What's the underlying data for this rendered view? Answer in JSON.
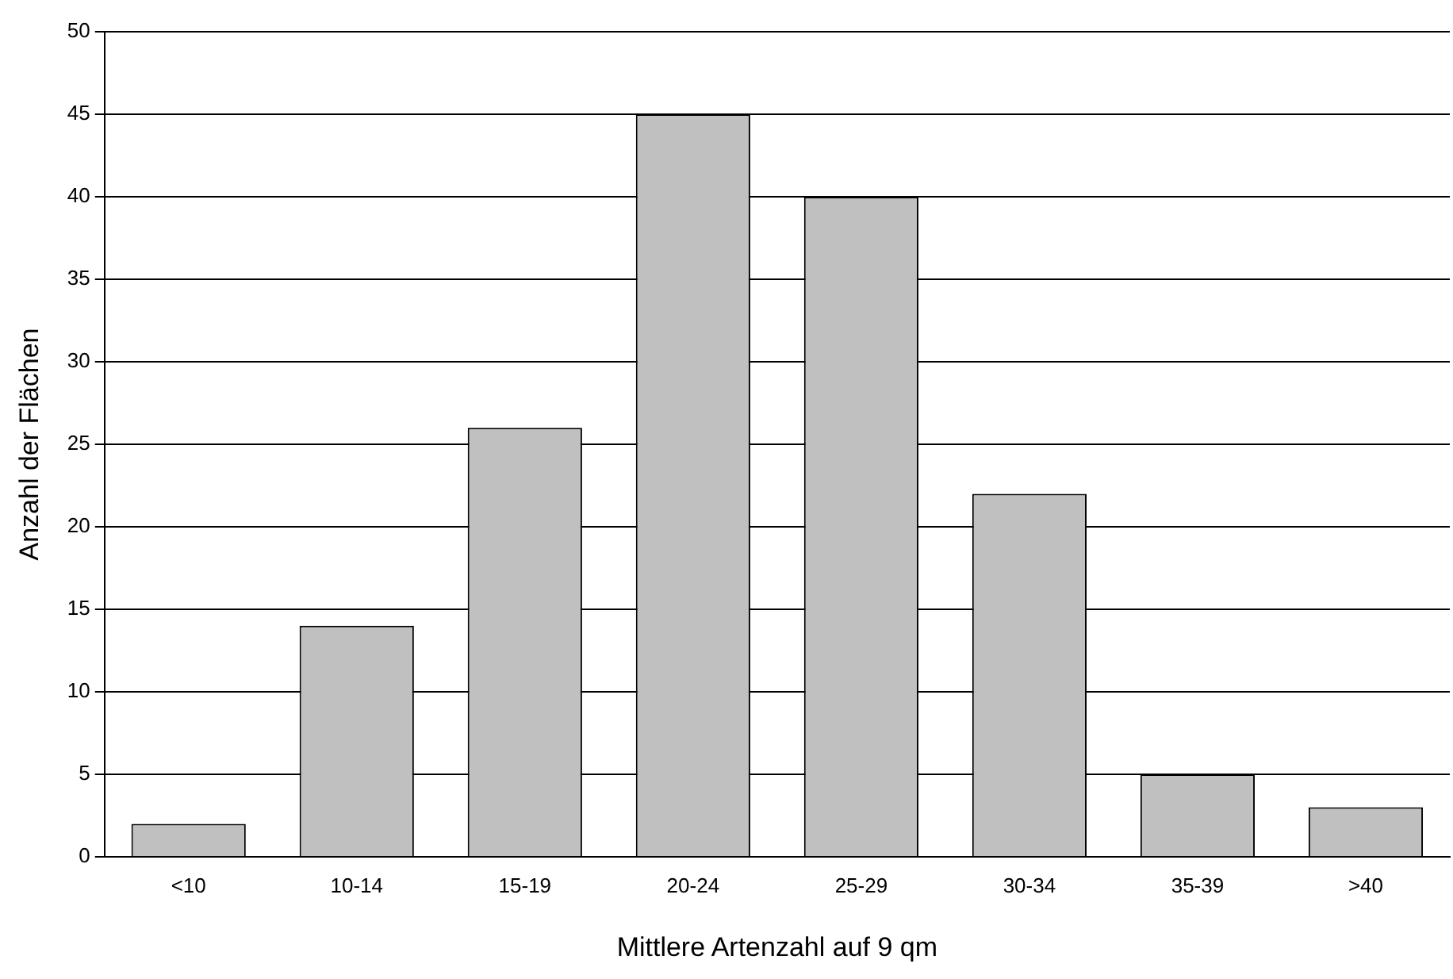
{
  "chart_data": {
    "type": "bar",
    "xlabel": "Mittlere Artenzahl auf 9 qm",
    "ylabel": "Anzahl der Flächen",
    "categories": [
      "<10",
      "10-14",
      "15-19",
      "20-24",
      "25-29",
      "30-34",
      "35-39",
      ">40"
    ],
    "values": [
      2,
      14,
      26,
      45,
      40,
      22,
      5,
      3
    ],
    "color": "#c0c0c0",
    "ylim": [
      0,
      50
    ],
    "yticks": [
      0,
      5,
      10,
      15,
      20,
      25,
      30,
      35,
      40,
      45,
      50
    ],
    "grid": "y",
    "legend": false
  }
}
